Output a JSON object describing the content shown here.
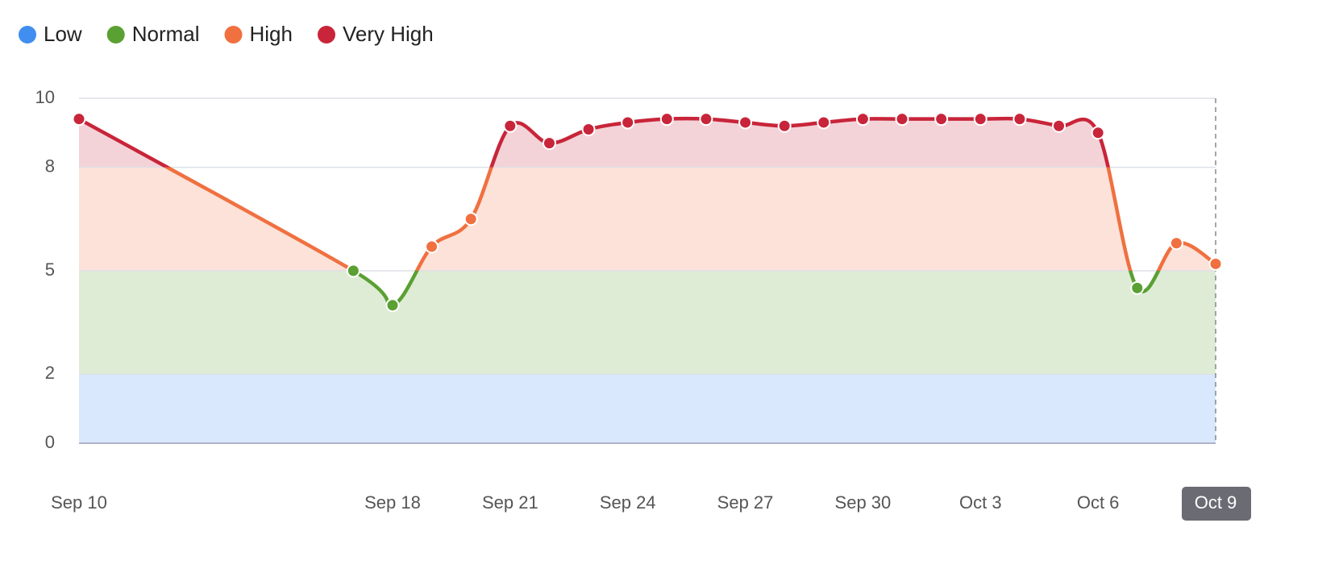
{
  "chart_data": {
    "type": "line",
    "bands": [
      {
        "name": "Low",
        "color": "#3f8ef0",
        "range": [
          0,
          2
        ]
      },
      {
        "name": "Normal",
        "color": "#5aa032",
        "range": [
          2,
          5
        ]
      },
      {
        "name": "High",
        "color": "#f07040",
        "range": [
          5,
          8
        ]
      },
      {
        "name": "Very High",
        "color": "#c8253a",
        "range": [
          8,
          10
        ]
      }
    ],
    "x": [
      "Sep 10",
      "Sep 17",
      "Sep 18",
      "Sep 19",
      "Sep 20",
      "Sep 21",
      "Sep 22",
      "Sep 23",
      "Sep 24",
      "Sep 25",
      "Sep 26",
      "Sep 27",
      "Sep 28",
      "Sep 29",
      "Sep 30",
      "Oct 1",
      "Oct 2",
      "Oct 3",
      "Oct 4",
      "Oct 5",
      "Oct 6",
      "Oct 7",
      "Oct 8",
      "Oct 9"
    ],
    "values": [
      9.4,
      5.0,
      4.0,
      5.7,
      6.5,
      9.2,
      8.7,
      9.1,
      9.3,
      9.4,
      9.4,
      9.3,
      9.2,
      9.3,
      9.4,
      9.4,
      9.4,
      9.4,
      9.4,
      9.2,
      9.0,
      4.5,
      5.8,
      5.2
    ],
    "xlim": [
      "Sep 10",
      "Oct 9"
    ],
    "xticks": [
      "Sep 10",
      "Sep 18",
      "Sep 21",
      "Sep 24",
      "Sep 27",
      "Sep 30",
      "Oct 3",
      "Oct 6",
      "Oct 9"
    ],
    "ylim": [
      0,
      10
    ],
    "yticks": [
      0,
      2,
      5,
      8,
      10
    ],
    "grid": true
  }
}
